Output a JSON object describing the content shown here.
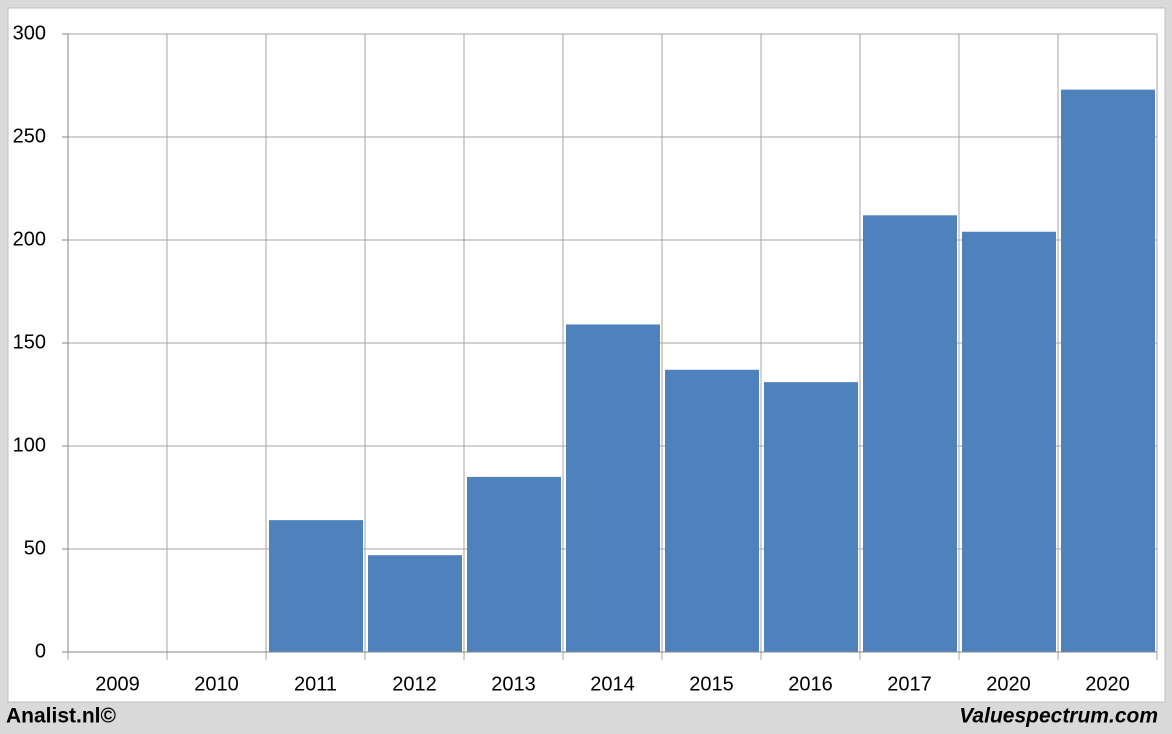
{
  "chart_data": {
    "type": "bar",
    "categories": [
      "2009",
      "2010",
      "2011",
      "2012",
      "2013",
      "2014",
      "2015",
      "2016",
      "2017",
      "2020",
      "2020"
    ],
    "values": [
      null,
      null,
      64,
      47,
      85,
      159,
      137,
      131,
      212,
      204,
      273
    ],
    "color": "#4f81bd",
    "ylim": [
      0,
      300
    ],
    "yticks": [
      0,
      50,
      100,
      150,
      200,
      250,
      300
    ],
    "grid": true,
    "footer_left": "Analist.nl©",
    "footer_right": "Valuespectrum.com"
  }
}
